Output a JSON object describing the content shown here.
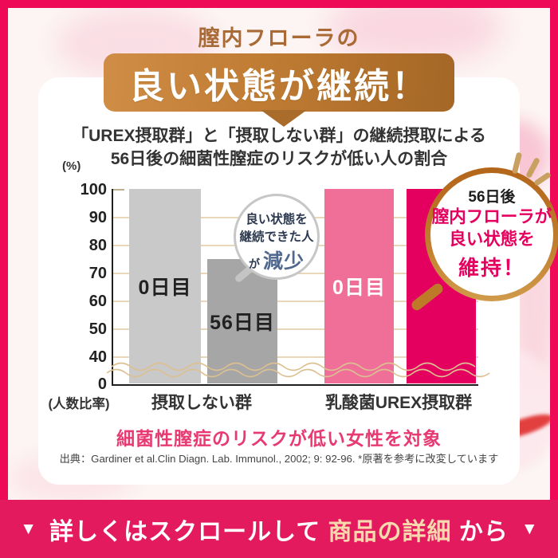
{
  "page": {
    "eyebrow": "膣内フローラの",
    "banner_title": "良い状態が継続！",
    "footer": {
      "arrow_left": "▼",
      "text_before": "詳しくはスクロールして",
      "text_emphasis": "商品の詳細",
      "text_after": "から",
      "arrow_right": "▼"
    }
  },
  "bubble": {
    "line1": "良い状態を",
    "line2": "継続できた人",
    "particle": "が",
    "emphasis": "減少"
  },
  "badge": {
    "line1": "56日後",
    "line2": "膣内フローラが",
    "line3": "良い状態を",
    "line4": "維持！"
  },
  "chart_data": {
    "type": "bar",
    "title_line1": "「UREX摂取群」と「摂取しない群」の継続摂取による",
    "title_line2": "56日後の細菌性膣症のリスクが低い人の割合",
    "y_unit": "(%)",
    "x_unit": "(人数比率)",
    "ylim": [
      0,
      100
    ],
    "y_ticks": [
      100,
      90,
      80,
      70,
      60,
      50,
      40,
      0
    ],
    "grid": true,
    "axis_break_between": [
      0,
      40
    ],
    "groups": [
      {
        "label": "摂取しない群"
      },
      {
        "label": "乳酸菌UREX摂取群"
      }
    ],
    "bars": [
      {
        "group": 0,
        "label": "0日目",
        "value": 100,
        "color": "#c9c9c9",
        "label_color": "#222222"
      },
      {
        "group": 0,
        "label": "56日目",
        "value": 75,
        "color": "#a6a6a6",
        "label_color": "#222222"
      },
      {
        "group": 1,
        "label": "0日目",
        "value": 100,
        "color": "#ef6f99",
        "label_color": "#ffffff"
      },
      {
        "group": 1,
        "label": "",
        "value": 100,
        "color": "#e4005f",
        "label_color": "#ffffff"
      }
    ],
    "note": "細菌性膣症のリスクが低い女性を対象",
    "source": "出典：Gardiner et al.Clin Diagn. Lab. Immunol., 2002; 9: 92-96. *原著を参考に改変しています"
  },
  "colors": {
    "frame": "#ef0a58",
    "footer_bar": "#e41a5f",
    "banner_gold_light": "#d08d46",
    "banner_gold_dark": "#a46726",
    "accent_magenta": "#e5005f",
    "note_pink": "#e73a72",
    "grid_tan": "#e9d7ba"
  }
}
